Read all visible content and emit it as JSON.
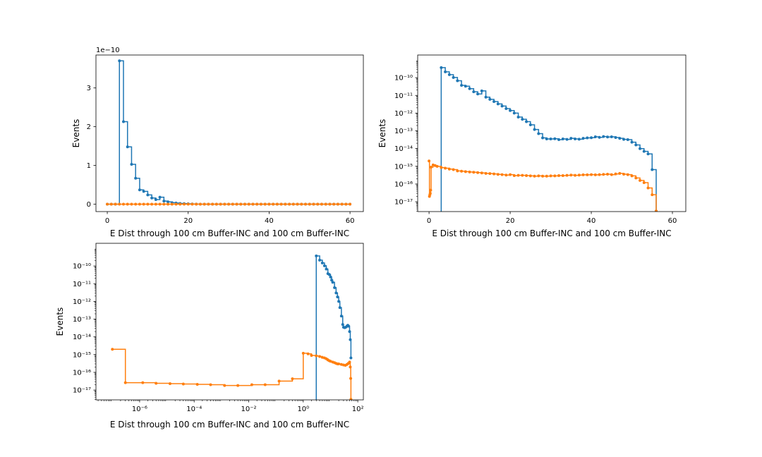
{
  "colors": {
    "series_blue": "#1f77b4",
    "series_orange": "#ff7f0e",
    "axis": "#000000",
    "background": "#ffffff"
  },
  "chart_data": [
    {
      "type": "line",
      "drawstyle": "steps-post",
      "xlabel": "E Dist through 100 cm Buffer-INC and 100 cm Buffer-INC",
      "ylabel": "Events",
      "xscale": "linear",
      "yscale": "linear",
      "offset_text": "1e−10",
      "y_multiplier": 1e-10,
      "xlim": [
        -2.8,
        63.3
      ],
      "ylim": [
        -1.9e-11,
        3.85e-10
      ],
      "xticks": [
        0,
        20,
        40,
        60
      ],
      "xtick_labels": [
        "0",
        "20",
        "40",
        "60"
      ],
      "yticks": [
        0,
        1e-10,
        2e-10,
        3e-10
      ],
      "ytick_labels": [
        "0",
        "1",
        "2",
        "3"
      ],
      "grid": false,
      "series": [
        {
          "color_key": "series_blue",
          "x": [
            0,
            1,
            2,
            3,
            4,
            5,
            6,
            7,
            8,
            9,
            10,
            11,
            12,
            13,
            14,
            15,
            16,
            17,
            18,
            19,
            20,
            21,
            22,
            23,
            24,
            25,
            26,
            27,
            28,
            29,
            30,
            31,
            32,
            33,
            34,
            35,
            36,
            37,
            38,
            39,
            40,
            41,
            42,
            43,
            44,
            45,
            46,
            47,
            48,
            49,
            50,
            51,
            52,
            53,
            54,
            55,
            56,
            57,
            58,
            59,
            60
          ],
          "y": [
            0,
            0,
            0,
            3.7e-10,
            2.13e-10,
            1.48e-10,
            1.03e-10,
            6.7e-11,
            3.7e-11,
            3.3e-11,
            2.4e-11,
            1.6e-11,
            1.2e-11,
            1.8e-11,
            8e-12,
            6e-12,
            4e-12,
            3e-12,
            2e-12,
            1.5e-12,
            1e-12,
            5e-13,
            3e-13,
            2e-13,
            1e-13,
            1e-13,
            1e-13,
            1e-13,
            5e-14,
            3e-14,
            3e-14,
            3e-14,
            3e-14,
            3e-14,
            3e-14,
            3e-14,
            3e-14,
            3e-14,
            3e-14,
            3e-14,
            3e-14,
            3e-14,
            3e-14,
            3e-14,
            3e-14,
            3e-14,
            3e-14,
            3e-14,
            3e-14,
            3e-14,
            3e-14,
            3e-14,
            3e-14,
            3e-14,
            3e-14,
            3e-14,
            0,
            0,
            0,
            0,
            0
          ]
        },
        {
          "color_key": "series_orange",
          "x": [
            0,
            1,
            2,
            3,
            4,
            5,
            6,
            7,
            8,
            9,
            10,
            11,
            12,
            13,
            14,
            15,
            16,
            17,
            18,
            19,
            20,
            21,
            22,
            23,
            24,
            25,
            26,
            27,
            28,
            29,
            30,
            31,
            32,
            33,
            34,
            35,
            36,
            37,
            38,
            39,
            40,
            41,
            42,
            43,
            44,
            45,
            46,
            47,
            48,
            49,
            50,
            51,
            52,
            53,
            54,
            55,
            56,
            57,
            58,
            59,
            60
          ],
          "y": [
            0,
            0,
            0,
            0,
            0,
            0,
            0,
            0,
            0,
            0,
            0,
            0,
            0,
            0,
            0,
            0,
            0,
            0,
            0,
            0,
            0,
            0,
            0,
            0,
            0,
            0,
            0,
            0,
            0,
            0,
            0,
            0,
            0,
            0,
            0,
            0,
            0,
            0,
            0,
            0,
            0,
            0,
            0,
            0,
            0,
            0,
            0,
            0,
            0,
            0,
            0,
            0,
            0,
            0,
            0,
            0,
            0,
            0,
            0,
            0,
            0
          ]
        }
      ]
    },
    {
      "type": "line",
      "drawstyle": "steps-post",
      "xlabel": "E Dist through 100 cm Buffer-INC and 100 cm Buffer-INC",
      "ylabel": "Events",
      "xscale": "linear",
      "yscale": "log",
      "xlim": [
        -2.8,
        63.3
      ],
      "ylim": [
        2.8e-18,
        1.9e-09
      ],
      "xticks": [
        0,
        20,
        40,
        60
      ],
      "xtick_labels": [
        "0",
        "20",
        "40",
        "60"
      ],
      "yticks": [
        1e-17,
        1e-16,
        1e-15,
        1e-14,
        1e-13,
        1e-12,
        1e-11,
        1e-10
      ],
      "ytick_labels": [
        "10⁻¹⁷",
        "10⁻¹⁶",
        "10⁻¹⁵",
        "10⁻¹⁴",
        "10⁻¹³",
        "10⁻¹²",
        "10⁻¹¹",
        "10⁻¹⁰"
      ],
      "grid": false,
      "series": [
        {
          "color_key": "series_blue",
          "x": [
            3,
            4,
            5,
            6,
            7,
            8,
            9,
            10,
            11,
            12,
            13,
            14,
            15,
            16,
            17,
            18,
            19,
            20,
            21,
            22,
            23,
            24,
            25,
            26,
            27,
            28,
            29,
            30,
            31,
            32,
            33,
            34,
            35,
            36,
            37,
            38,
            39,
            40,
            41,
            42,
            43,
            44,
            45,
            46,
            47,
            48,
            49,
            50,
            51,
            52,
            53,
            54,
            55,
            56
          ],
          "y": [
            3.7e-10,
            2.13e-10,
            1.48e-10,
            1.03e-10,
            6.7e-11,
            3.7e-11,
            3.3e-11,
            2.4e-11,
            1.6e-11,
            1.2e-11,
            1.8e-11,
            8e-12,
            6e-12,
            4.5e-12,
            3.3e-12,
            2.5e-12,
            1.8e-12,
            1.4e-12,
            1e-12,
            6e-13,
            4.5e-13,
            3.3e-13,
            2.2e-13,
            1.2e-13,
            7e-14,
            4e-14,
            3.5e-14,
            3.5e-14,
            3.6e-14,
            3.2e-14,
            3.5e-14,
            3.3e-14,
            3.8e-14,
            3.5e-14,
            3.4e-14,
            3.8e-14,
            4e-14,
            4.1e-14,
            4.6e-14,
            4.3e-14,
            4.8e-14,
            4.5e-14,
            4.6e-14,
            4.2e-14,
            3.8e-14,
            3.3e-14,
            3.2e-14,
            2.3e-14,
            1.6e-14,
            1e-14,
            7e-15,
            5e-15,
            6.5e-16,
            3e-18
          ]
        },
        {
          "color_key": "series_orange",
          "x": [
            0,
            0.1,
            0.2,
            0.3,
            0.4,
            0.5,
            1,
            1.5,
            2,
            3,
            4,
            5,
            6,
            7,
            8,
            9,
            10,
            11,
            12,
            13,
            14,
            15,
            16,
            17,
            18,
            19,
            20,
            21,
            22,
            23,
            24,
            25,
            26,
            27,
            28,
            29,
            30,
            31,
            32,
            33,
            34,
            35,
            36,
            37,
            38,
            39,
            40,
            41,
            42,
            43,
            44,
            45,
            46,
            47,
            48,
            49,
            50,
            51,
            52,
            53,
            54,
            55,
            56
          ],
          "y": [
            2e-15,
            2e-17,
            2.5e-17,
            3e-17,
            4.5e-17,
            9e-16,
            1.2e-15,
            1.1e-15,
            1e-15,
            8.5e-16,
            7.8e-16,
            7e-16,
            6.5e-16,
            5.5e-16,
            5.3e-16,
            5e-16,
            4.8e-16,
            4.6e-16,
            4.4e-16,
            4.2e-16,
            4e-16,
            3.9e-16,
            3.7e-16,
            3.5e-16,
            3.4e-16,
            3.2e-16,
            3.4e-16,
            3e-16,
            3.1e-16,
            3.1e-16,
            3e-16,
            2.9e-16,
            2.8e-16,
            2.9e-16,
            2.8e-16,
            2.8e-16,
            2.9e-16,
            2.9e-16,
            3e-16,
            3e-16,
            3.1e-16,
            3.2e-16,
            3.1e-16,
            3.2e-16,
            3.3e-16,
            3.3e-16,
            3.4e-16,
            3.3e-16,
            3.4e-16,
            3.5e-16,
            3.6e-16,
            3.4e-16,
            3.7e-16,
            4e-16,
            3.6e-16,
            3.4e-16,
            2.9e-16,
            2.2e-16,
            1.6e-16,
            1.2e-16,
            6e-17,
            2.5e-17,
            3e-18
          ]
        }
      ]
    },
    {
      "type": "line",
      "drawstyle": "steps-post",
      "xlabel": "E Dist through 100 cm Buffer-INC and 100 cm Buffer-INC",
      "ylabel": "Events",
      "xscale": "log",
      "yscale": "log",
      "xlim": [
        2.5e-08,
        160
      ],
      "ylim": [
        2.8e-18,
        1.9e-09
      ],
      "xticks": [
        1e-06,
        0.0001,
        0.01,
        1,
        100
      ],
      "xtick_labels": [
        "10⁻⁶",
        "10⁻⁴",
        "10⁻²",
        "10⁰",
        "10²"
      ],
      "yticks": [
        1e-17,
        1e-16,
        1e-15,
        1e-14,
        1e-13,
        1e-12,
        1e-11,
        1e-10
      ],
      "ytick_labels": [
        "10⁻¹⁷",
        "10⁻¹⁶",
        "10⁻¹⁵",
        "10⁻¹⁴",
        "10⁻¹³",
        "10⁻¹²",
        "10⁻¹¹",
        "10⁻¹⁰"
      ],
      "grid": false,
      "series": [
        {
          "color_key": "series_blue",
          "x": [
            3,
            4,
            5,
            6,
            7,
            8,
            9,
            10,
            11,
            12,
            14,
            16,
            18,
            20,
            22,
            25,
            28,
            30,
            33,
            36,
            40,
            43,
            46,
            50,
            53,
            56
          ],
          "y": [
            3.7e-10,
            2.13e-10,
            1.48e-10,
            1.03e-10,
            6.7e-11,
            3.7e-11,
            3.3e-11,
            2.4e-11,
            1.6e-11,
            1.2e-11,
            6e-12,
            3e-12,
            1.8e-12,
            1e-12,
            4.5e-13,
            1.5e-13,
            5e-14,
            3.5e-14,
            3.3e-14,
            3.5e-14,
            4e-14,
            4.5e-14,
            4e-14,
            2e-14,
            7e-15,
            6.5e-16
          ]
        },
        {
          "color_key": "series_orange",
          "x": [
            1e-07,
            3e-07,
            1.3e-06,
            4e-06,
            1.3e-05,
            4e-05,
            0.00013,
            0.0004,
            0.0013,
            0.004,
            0.013,
            0.04,
            0.13,
            0.4,
            1,
            1.5,
            2,
            3,
            4,
            5,
            6,
            7,
            8,
            9,
            10,
            12,
            14,
            16,
            18,
            20,
            25,
            30,
            35,
            40,
            45,
            50,
            53,
            55,
            56
          ],
          "y": [
            2e-15,
            2.6e-17,
            2.6e-17,
            2.4e-17,
            2.3e-17,
            2.2e-17,
            2.1e-17,
            2e-17,
            1.8e-17,
            1.8e-17,
            2e-17,
            2e-17,
            3.2e-17,
            4.3e-17,
            1.2e-15,
            1.1e-15,
            9e-16,
            8.5e-16,
            7.8e-16,
            7e-16,
            6.5e-16,
            5.8e-16,
            5e-16,
            4.5e-16,
            4.2e-16,
            3.8e-16,
            3.5e-16,
            3.2e-16,
            3e-16,
            3e-16,
            2.8e-16,
            2.6e-16,
            2.5e-16,
            2.8e-16,
            3.2e-16,
            3.8e-16,
            2e-16,
            4.5e-17,
            3e-18
          ]
        }
      ]
    }
  ]
}
